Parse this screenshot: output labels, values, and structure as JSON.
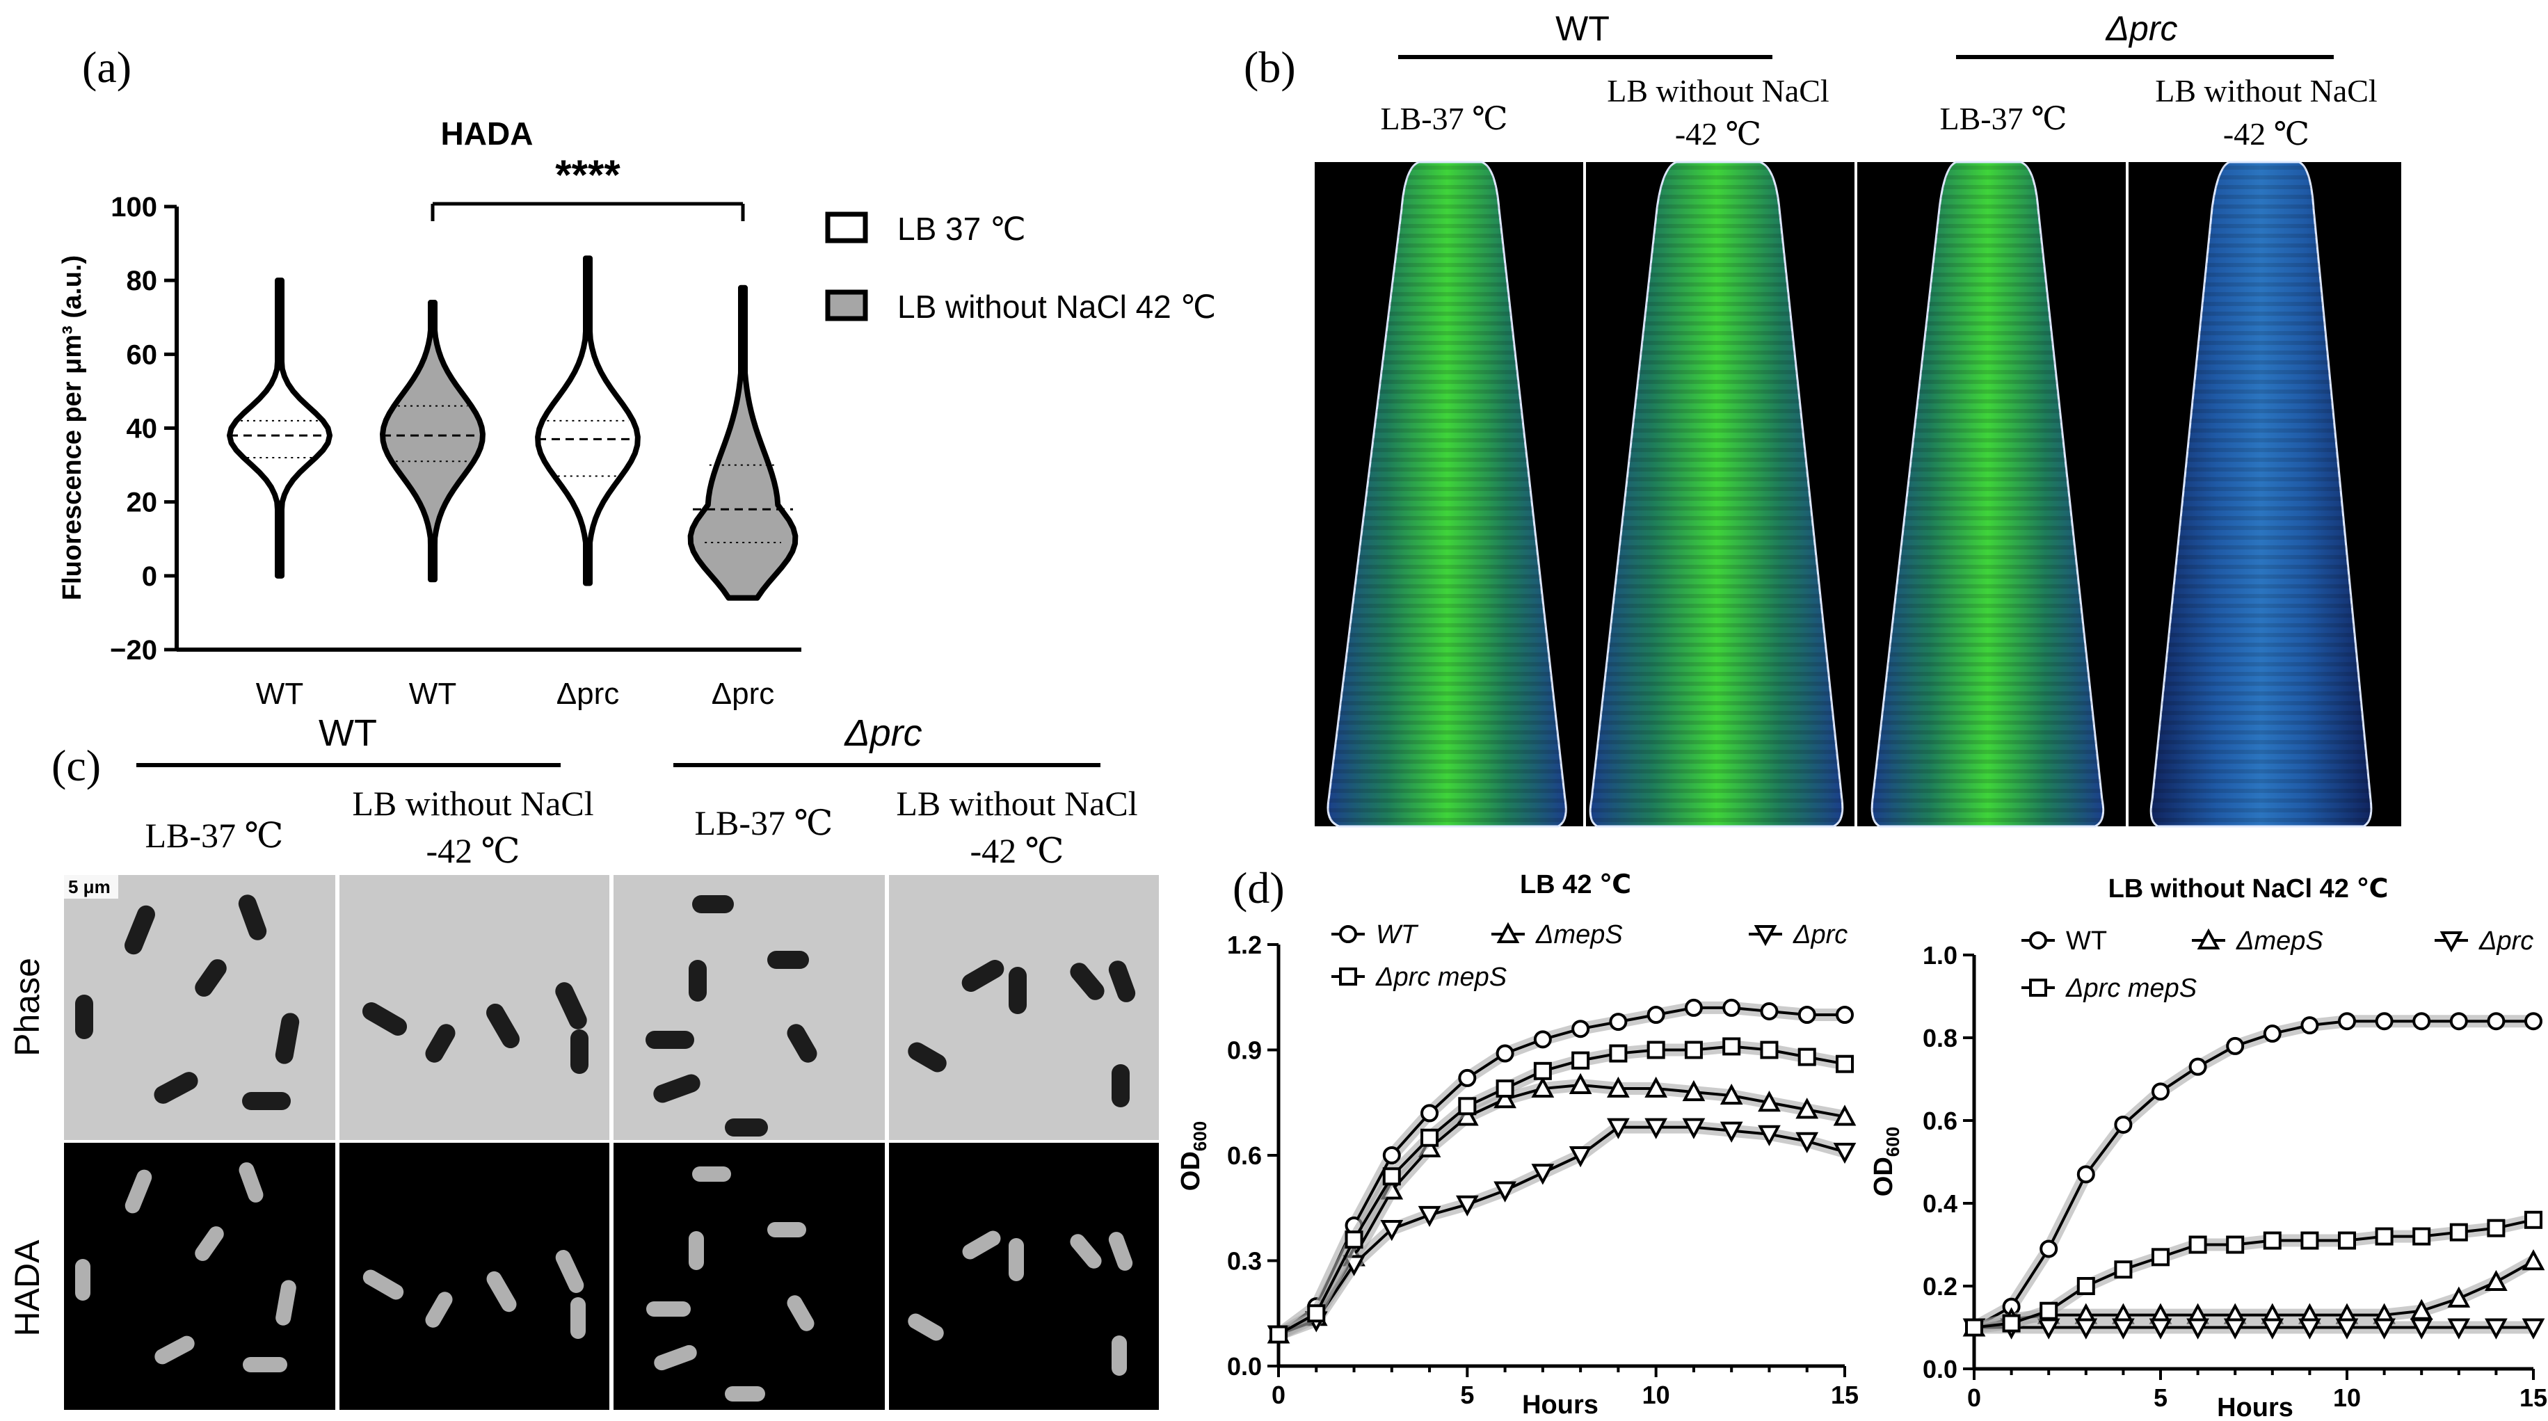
{
  "panel_labels": {
    "a": "(a)",
    "b": "(b)",
    "c": "(c)",
    "d": "(d)"
  },
  "panel_a": {
    "title": "HADA",
    "significance": "****",
    "ylabel": "Fluorescence per μm³ (a.u.)",
    "legend": [
      "LB 37 ℃",
      "LB without NaCl 42 ℃"
    ],
    "xlabels": [
      "WT",
      "WT",
      "Δprc",
      "Δprc"
    ]
  },
  "panel_b": {
    "group_wt": "WT",
    "group_prc": "Δprc",
    "cond1": "LB-37 ℃",
    "cond2_line1": "LB without NaCl",
    "cond2_line2": "-42 ℃"
  },
  "panel_c": {
    "group_wt": "WT",
    "group_prc": "Δprc",
    "cond1": "LB-37 ℃",
    "cond2_line1": "LB without NaCl",
    "cond2_line2": "-42 ℃",
    "row_phase": "Phase",
    "row_hada": "HADA",
    "scale_bar": "5 μm"
  },
  "chart_data": [
    {
      "type": "violin",
      "title": "HADA",
      "ylabel": "Fluorescence per μm³ (a.u.)",
      "ylim": [
        -20,
        100
      ],
      "yticks": [
        -20,
        0,
        20,
        40,
        60,
        80,
        100
      ],
      "categories": [
        "WT",
        "WT",
        "Δprc",
        "Δprc"
      ],
      "conditions": [
        "LB 37 ℃",
        "LB without NaCl 42 ℃",
        "LB 37 ℃",
        "LB without NaCl 42 ℃"
      ],
      "series": [
        {
          "min": 0,
          "max": 80,
          "q1": 32,
          "median": 38,
          "q3": 42
        },
        {
          "min": -1,
          "max": 74,
          "q1": 31,
          "median": 38,
          "q3": 46
        },
        {
          "min": -2,
          "max": 86,
          "q1": 27,
          "median": 37,
          "q3": 42
        },
        {
          "min": -6,
          "max": 78,
          "q1": 9,
          "median": 18,
          "q3": 30
        }
      ],
      "annotations": [
        {
          "between": [
            2,
            4
          ],
          "text": "****"
        }
      ]
    },
    {
      "type": "line",
      "title": "LB 42 ℃",
      "xlabel": "Hours",
      "ylabel": "OD600",
      "xlim": [
        0,
        15
      ],
      "ylim": [
        0,
        1.2
      ],
      "xticks": [
        0,
        5,
        10,
        15
      ],
      "yticks": [
        0.0,
        0.3,
        0.6,
        0.9,
        1.2
      ],
      "x": [
        0,
        1,
        2,
        3,
        4,
        5,
        6,
        7,
        8,
        9,
        10,
        11,
        12,
        13,
        14,
        15
      ],
      "series": [
        {
          "name": "WT",
          "values": [
            0.09,
            0.17,
            0.4,
            0.6,
            0.72,
            0.82,
            0.89,
            0.93,
            0.96,
            0.98,
            1.0,
            1.02,
            1.02,
            1.01,
            1.0,
            1.0
          ]
        },
        {
          "name": "ΔmepS",
          "values": [
            0.09,
            0.14,
            0.31,
            0.5,
            0.62,
            0.71,
            0.76,
            0.79,
            0.8,
            0.79,
            0.79,
            0.78,
            0.77,
            0.75,
            0.73,
            0.71
          ]
        },
        {
          "name": "Δprc",
          "values": [
            0.09,
            0.13,
            0.29,
            0.39,
            0.43,
            0.46,
            0.5,
            0.55,
            0.6,
            0.68,
            0.68,
            0.68,
            0.67,
            0.66,
            0.64,
            0.61
          ]
        },
        {
          "name": "Δprc mepS",
          "values": [
            0.09,
            0.15,
            0.36,
            0.54,
            0.65,
            0.74,
            0.79,
            0.84,
            0.87,
            0.89,
            0.9,
            0.9,
            0.91,
            0.9,
            0.88,
            0.86
          ]
        }
      ]
    },
    {
      "type": "line",
      "title": "LB without NaCl 42 ℃",
      "xlabel": "Hours",
      "ylabel": "OD600",
      "xlim": [
        0,
        15
      ],
      "ylim": [
        0,
        1.0
      ],
      "xticks": [
        0,
        5,
        10,
        15
      ],
      "yticks": [
        0.0,
        0.2,
        0.4,
        0.6,
        0.8,
        1.0
      ],
      "x": [
        0,
        1,
        2,
        3,
        4,
        5,
        6,
        7,
        8,
        9,
        10,
        11,
        12,
        13,
        14,
        15
      ],
      "series": [
        {
          "name": "WT",
          "values": [
            0.1,
            0.15,
            0.29,
            0.47,
            0.59,
            0.67,
            0.73,
            0.78,
            0.81,
            0.83,
            0.84,
            0.84,
            0.84,
            0.84,
            0.84,
            0.84
          ]
        },
        {
          "name": "ΔmepS",
          "values": [
            0.1,
            0.12,
            0.13,
            0.13,
            0.13,
            0.13,
            0.13,
            0.13,
            0.13,
            0.13,
            0.13,
            0.13,
            0.14,
            0.17,
            0.21,
            0.26
          ]
        },
        {
          "name": "Δprc",
          "values": [
            0.1,
            0.1,
            0.1,
            0.1,
            0.1,
            0.1,
            0.1,
            0.1,
            0.1,
            0.1,
            0.1,
            0.1,
            0.1,
            0.1,
            0.1,
            0.1
          ]
        },
        {
          "name": "Δprc mepS",
          "values": [
            0.1,
            0.11,
            0.14,
            0.2,
            0.24,
            0.27,
            0.3,
            0.3,
            0.31,
            0.31,
            0.31,
            0.32,
            0.32,
            0.33,
            0.34,
            0.36
          ]
        }
      ]
    }
  ]
}
